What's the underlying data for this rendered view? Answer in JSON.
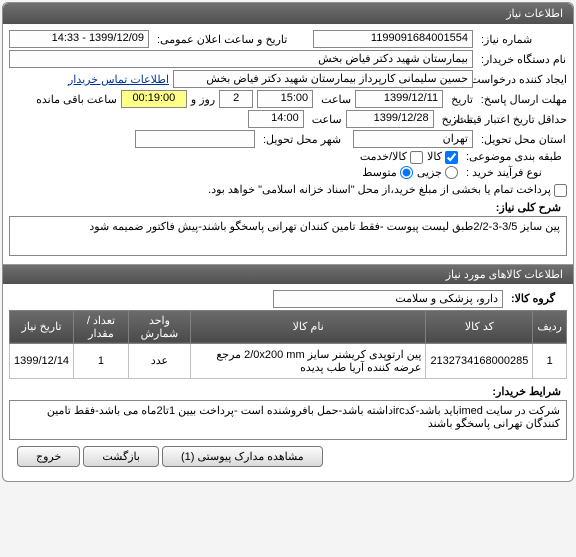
{
  "panel_title": "اطلاعات نیاز",
  "labels": {
    "niaz_no": "شماره نیاز:",
    "announce": "تاریخ و ساعت اعلان عمومی:",
    "buyer_org": "نام دستگاه خریدار:",
    "creator": "ایجاد کننده درخواست:",
    "creator_link": "اطلاعات تماس خریدار",
    "answer_deadline": "مهلت ارسال پاسخ:",
    "date_word": "تاریخ",
    "time_word": "ساعت",
    "credit_min": "حداقل تاریخ اعتبار قیمت:",
    "until_date": "تا تاریخ",
    "until_time": "ساعت",
    "remain_day": "روز و",
    "remain_suffix": "ساعت باقی مانده",
    "deliver_province": "استان محل تحویل:",
    "deliver_city": "شهر محل تحویل:",
    "budget_cat": "طبقه بندی موضوعی:",
    "goods": "کالا",
    "service": "کالا/خدمت",
    "buy_type": "نوع فرآیند خرید :",
    "small": "جزیی",
    "medium": "متوسط",
    "partial_pay": "پرداخت تمام یا بخشی از مبلغ خرید،از محل \"اسناد خزانه اسلامی\" خواهد بود.",
    "desc_title": "شرح کلی نیاز:",
    "items_title": "اطلاعات کالاهای مورد نیاز",
    "goods_group": "گروه کالا:",
    "buyer_conditions": "شرایط خریدار:",
    "attach_btn": "مشاهده مدارک پیوستی (1)",
    "back_btn": "بازگشت",
    "exit_btn": "خروج"
  },
  "values": {
    "niaz_no": "1199091684001554",
    "announce": "1399/12/09 - 14:33",
    "buyer_org": "بیمارستان شهید دکتر فیاض بخش",
    "creator": "حسین سلیمانی کارپرداز بیمارستان شهید دکتر فیاض بخش",
    "ans_date": "1399/12/11",
    "ans_time": "15:00",
    "remain_days": "2",
    "remain_time": "00:19:00",
    "credit_date": "1399/12/28",
    "credit_time": "14:00",
    "province": "تهران",
    "city": "",
    "desc": "پین سایز 3/5-3-2/2طبق لیست پیوست -فقط تامین کنندان تهرانی پاسخگو باشند-پیش فاکتور ضمیمه شود",
    "goods_group": "دارو، پزشکی و سلامت",
    "conditions": "شرکت در سایت imedباید باشد-کدircداشته باشد-حمل بافروشنده است -پرداخت بیین 1تا2ماه می باشد-فقط تامین کنندگان تهرانی پاسخگو باشند"
  },
  "check": {
    "goods": true,
    "service": false,
    "partial": false
  },
  "radio": {
    "small": false,
    "medium": true
  },
  "table": {
    "headers": [
      "ردیف",
      "کد کالا",
      "نام کالا",
      "واحد شمارش",
      "تعداد / مقدار",
      "تاریخ نیاز"
    ],
    "rows": [
      [
        "1",
        "2132734168000285",
        "پین ارتوپدی کریشنر سایز 2/0x200 mm مرجع عرضه کننده آریا طب پدیده",
        "عدد",
        "1",
        "1399/12/14"
      ]
    ]
  }
}
